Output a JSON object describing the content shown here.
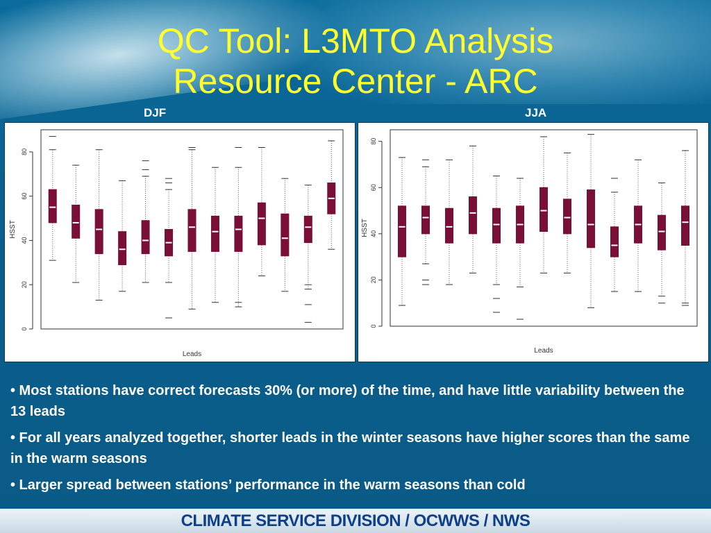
{
  "slide": {
    "title_line1": "QC Tool: L3MTO Analysis",
    "title_line2": "Resource Center - ARC",
    "footer": "CLIMATE SERVICE DIVISION / OCWWS / NWS",
    "bullets": [
      "•  Most stations have correct forecasts 30% (or more) of the time, and have little variability between the 13 leads",
      "• For all years analyzed together, shorter leads in the winter seasons have higher scores than the same in the warm seasons",
      "• Larger spread between stations’ performance in the warm seasons than cold"
    ]
  },
  "colors": {
    "box_fill": "#7a0f36",
    "title": "#ffff2e",
    "footer_text": "#0d3f8a"
  },
  "chart_data": [
    {
      "type": "boxplot",
      "season_label": "DJF",
      "xlabel": "Leads",
      "ylabel": "HSST",
      "ylim": [
        0,
        90
      ],
      "yticks": [
        0,
        20,
        40,
        60,
        80
      ],
      "boxes": [
        {
          "min": 31,
          "q1": 48,
          "median": 55,
          "q3": 63,
          "max": 81,
          "outliers": [
            87
          ]
        },
        {
          "min": 21,
          "q1": 41,
          "median": 48,
          "q3": 56,
          "max": 74,
          "outliers": []
        },
        {
          "min": 13,
          "q1": 34,
          "median": 45,
          "q3": 54,
          "max": 81,
          "outliers": []
        },
        {
          "min": 17,
          "q1": 29,
          "median": 36,
          "q3": 44,
          "max": 67,
          "outliers": []
        },
        {
          "min": 21,
          "q1": 34,
          "median": 40,
          "q3": 49,
          "max": 69,
          "outliers": [
            72,
            76
          ]
        },
        {
          "min": 21,
          "q1": 33,
          "median": 39,
          "q3": 45,
          "max": 63,
          "outliers": [
            66,
            68,
            5
          ]
        },
        {
          "min": 9,
          "q1": 35,
          "median": 46,
          "q3": 54,
          "max": 81,
          "outliers": [
            82
          ]
        },
        {
          "min": 12,
          "q1": 35,
          "median": 44,
          "q3": 51,
          "max": 73,
          "outliers": []
        },
        {
          "min": 10,
          "q1": 35,
          "median": 45,
          "q3": 51,
          "max": 73,
          "outliers": [
            82,
            12
          ]
        },
        {
          "min": 24,
          "q1": 38,
          "median": 50,
          "q3": 57,
          "max": 82,
          "outliers": []
        },
        {
          "min": 17,
          "q1": 33,
          "median": 41,
          "q3": 52,
          "max": 68,
          "outliers": []
        },
        {
          "min": 18,
          "q1": 39,
          "median": 46,
          "q3": 51,
          "max": 65,
          "outliers": [
            20,
            11,
            3
          ]
        },
        {
          "min": 36,
          "q1": 52,
          "median": 59,
          "q3": 66,
          "max": 85,
          "outliers": []
        }
      ]
    },
    {
      "type": "boxplot",
      "season_label": "JJA",
      "xlabel": "Leads",
      "ylabel": "HSST",
      "ylim": [
        0,
        85
      ],
      "yticks": [
        0,
        20,
        40,
        60,
        80
      ],
      "boxes": [
        {
          "min": 9,
          "q1": 30,
          "median": 43,
          "q3": 52,
          "max": 73,
          "outliers": []
        },
        {
          "min": 27,
          "q1": 40,
          "median": 47,
          "q3": 52,
          "max": 69,
          "outliers": [
            72,
            20,
            18
          ]
        },
        {
          "min": 18,
          "q1": 36,
          "median": 43,
          "q3": 51,
          "max": 72,
          "outliers": []
        },
        {
          "min": 23,
          "q1": 40,
          "median": 49,
          "q3": 56,
          "max": 78,
          "outliers": []
        },
        {
          "min": 18,
          "q1": 36,
          "median": 44,
          "q3": 51,
          "max": 65,
          "outliers": [
            12,
            6
          ]
        },
        {
          "min": 17,
          "q1": 36,
          "median": 44,
          "q3": 52,
          "max": 64,
          "outliers": [
            3
          ]
        },
        {
          "min": 23,
          "q1": 41,
          "median": 50,
          "q3": 60,
          "max": 82,
          "outliers": []
        },
        {
          "min": 23,
          "q1": 40,
          "median": 47,
          "q3": 55,
          "max": 75,
          "outliers": []
        },
        {
          "min": 8,
          "q1": 34,
          "median": 44,
          "q3": 59,
          "max": 83,
          "outliers": []
        },
        {
          "min": 15,
          "q1": 30,
          "median": 35,
          "q3": 43,
          "max": 58,
          "outliers": [
            64
          ]
        },
        {
          "min": 15,
          "q1": 36,
          "median": 44,
          "q3": 52,
          "max": 72,
          "outliers": []
        },
        {
          "min": 13,
          "q1": 33,
          "median": 41,
          "q3": 48,
          "max": 62,
          "outliers": [
            10
          ]
        },
        {
          "min": 10,
          "q1": 35,
          "median": 45,
          "q3": 52,
          "max": 76,
          "outliers": [
            9
          ]
        }
      ]
    }
  ]
}
